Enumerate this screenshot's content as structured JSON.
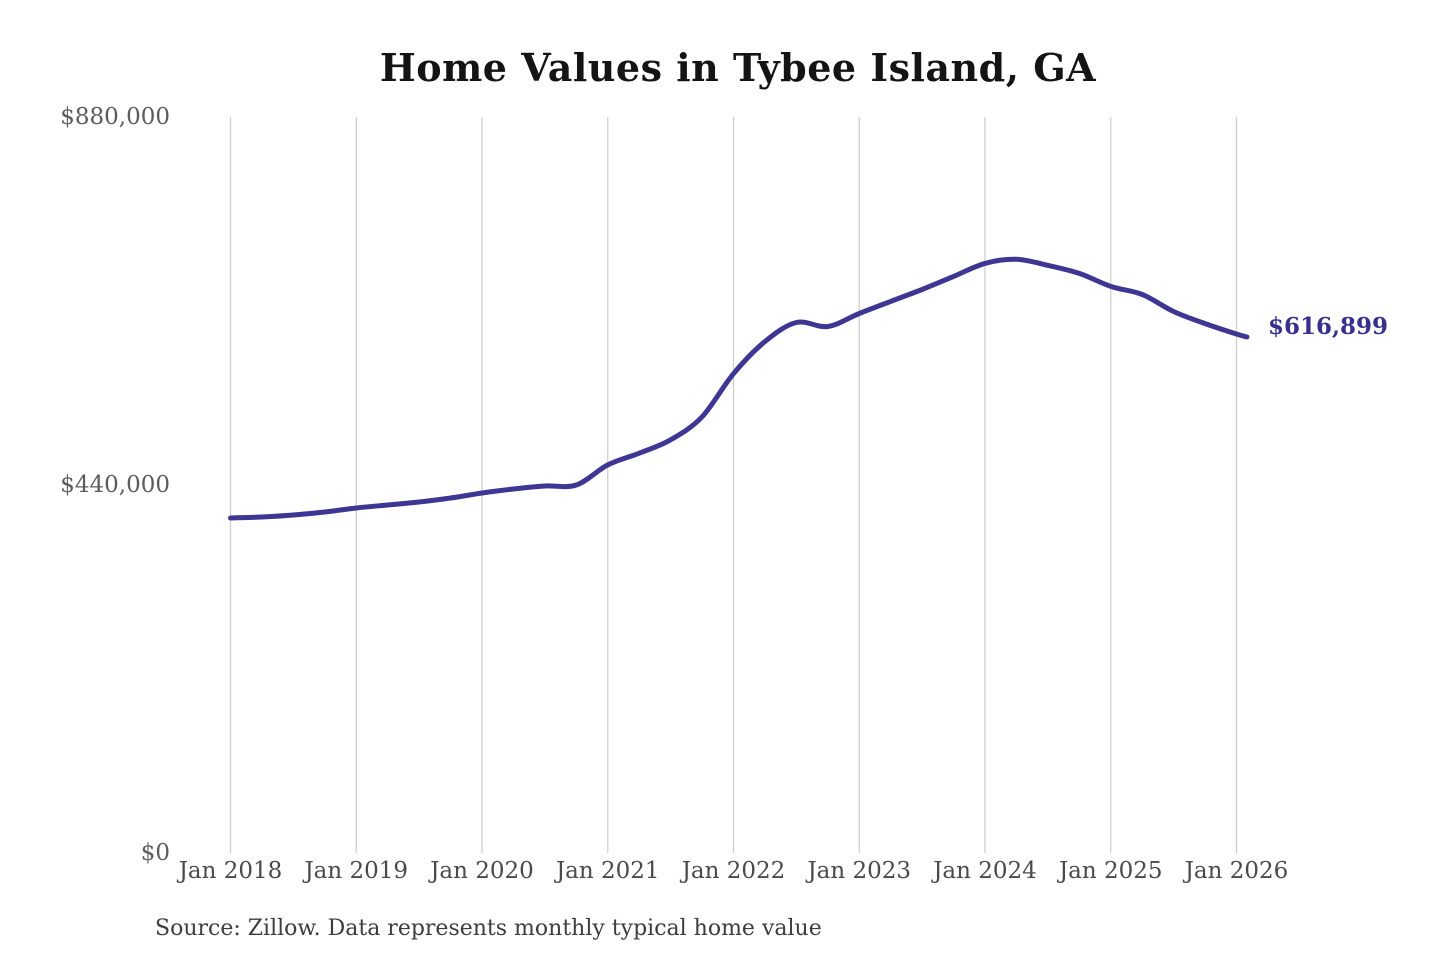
{
  "colors": {
    "background": "#ffffff",
    "line": "#3e3693",
    "annotation": "#37308e",
    "grid": "#cccccc",
    "x_tick_text": "#4a4a4a",
    "y_tick_text": "#5c5c5c",
    "title_text": "#141414",
    "source_text": "#3d3d3d"
  },
  "chart_data": {
    "type": "line",
    "title": "Home Values in Tybee Island, GA",
    "series_name": "Monthly typical home value",
    "x": [
      "2018-01",
      "2018-04",
      "2018-07",
      "2018-10",
      "2019-01",
      "2019-04",
      "2019-07",
      "2019-10",
      "2020-01",
      "2020-04",
      "2020-07",
      "2020-10",
      "2021-01",
      "2021-04",
      "2021-07",
      "2021-10",
      "2022-01",
      "2022-04",
      "2022-07",
      "2022-10",
      "2023-01",
      "2023-04",
      "2023-07",
      "2023-10",
      "2024-01",
      "2024-04",
      "2024-07",
      "2024-10",
      "2025-01",
      "2025-04",
      "2025-07",
      "2025-10",
      "2026-01",
      "2026-02"
    ],
    "values": [
      400500,
      401700,
      404100,
      407700,
      412500,
      416100,
      419700,
      424400,
      430400,
      435200,
      438800,
      440000,
      464000,
      478000,
      494000,
      521600,
      573100,
      611500,
      634300,
      629500,
      645100,
      659500,
      673800,
      689400,
      705000,
      709800,
      702600,
      693000,
      677400,
      667800,
      647400,
      633000,
      620500,
      616899
    ],
    "xticks": [
      "Jan 2018",
      "Jan 2019",
      "Jan 2020",
      "Jan 2021",
      "Jan 2022",
      "Jan 2023",
      "Jan 2024",
      "Jan 2025",
      "Jan 2026"
    ],
    "yticks": [
      {
        "label": "$0",
        "value": 0
      },
      {
        "label": "$440,000",
        "value": 440000
      },
      {
        "label": "$880,000",
        "value": 880000
      }
    ],
    "ylim": [
      0,
      880000
    ],
    "grid": "vertical-only",
    "legend": "none",
    "annotation": {
      "text": "$616,899",
      "value": 616899
    },
    "source": "Source: Zillow. Data represents monthly typical home value"
  }
}
